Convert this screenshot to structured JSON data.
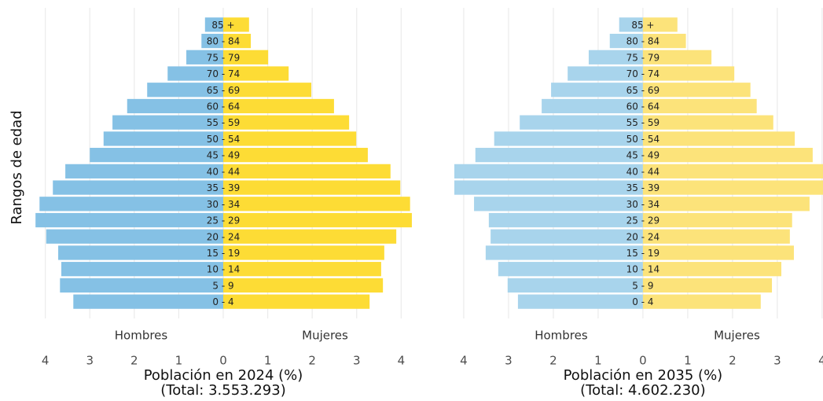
{
  "chart_data": [
    {
      "type": "pyramid",
      "categories": [
        "85 +",
        "80 - 84",
        "75 - 79",
        "70 - 74",
        "65 - 69",
        "60 - 64",
        "55 - 59",
        "50 - 54",
        "45 - 49",
        "40 - 44",
        "35 - 39",
        "30 - 34",
        "25 - 29",
        "20 - 24",
        "15 - 19",
        "10 - 14",
        "5 - 9",
        "0 - 4"
      ],
      "series": [
        {
          "name": "Hombres",
          "color": "#85c1e5",
          "values": [
            -0.41,
            -0.49,
            -0.83,
            -1.25,
            -1.71,
            -2.16,
            -2.49,
            -2.69,
            -3.0,
            -3.55,
            -3.83,
            -4.13,
            -4.22,
            -3.98,
            -3.71,
            -3.64,
            -3.67,
            -3.37
          ]
        },
        {
          "name": "Mujeres",
          "color": "#fddc35",
          "values": [
            0.58,
            0.62,
            1.01,
            1.47,
            1.98,
            2.49,
            2.83,
            2.99,
            3.25,
            3.76,
            3.98,
            4.2,
            4.24,
            3.89,
            3.62,
            3.55,
            3.59,
            3.29
          ]
        }
      ],
      "xlim": [
        -4.4,
        4.4
      ],
      "xticks": [
        {
          "value": -4,
          "label": "4"
        },
        {
          "value": -3,
          "label": "3"
        },
        {
          "value": -2,
          "label": "2"
        },
        {
          "value": -1,
          "label": "1"
        },
        0,
        1,
        2,
        3,
        4
      ],
      "xlabel": "Población en 2024 (%)",
      "xlabel_note": "(Total: 3.553.293)",
      "ylabel": "Rangos de edad",
      "grid": true
    },
    {
      "type": "pyramid",
      "categories": [
        "85 +",
        "80 - 84",
        "75 - 79",
        "70 - 74",
        "65 - 69",
        "60 - 64",
        "55 - 59",
        "50 - 54",
        "45 - 49",
        "40 - 44",
        "35 - 39",
        "30 - 34",
        "25 - 29",
        "20 - 24",
        "15 - 19",
        "10 - 14",
        "5 - 9",
        "0 - 4"
      ],
      "series": [
        {
          "name": "Hombres",
          "color": "#a8d4ec",
          "values": [
            -0.53,
            -0.74,
            -1.21,
            -1.68,
            -2.05,
            -2.26,
            -2.75,
            -3.32,
            -3.74,
            -4.21,
            -4.21,
            -3.77,
            -3.44,
            -3.4,
            -3.51,
            -3.23,
            -3.02,
            -2.79
          ]
        },
        {
          "name": "Mujeres",
          "color": "#fce37a",
          "values": [
            0.77,
            0.96,
            1.53,
            2.04,
            2.4,
            2.54,
            2.91,
            3.39,
            3.79,
            4.02,
            4.02,
            3.72,
            3.33,
            3.28,
            3.37,
            3.09,
            2.88,
            2.63
          ]
        }
      ],
      "xlim": [
        -4.35,
        4.02
      ],
      "xticks": [
        {
          "value": -4,
          "label": "4"
        },
        {
          "value": -3,
          "label": "3"
        },
        {
          "value": -2,
          "label": "2"
        },
        {
          "value": -1,
          "label": "1"
        },
        0,
        1,
        2,
        3,
        4
      ],
      "xlabel": "Población en 2035 (%)",
      "xlabel_note": "(Total: 4.602.230)",
      "grid": true
    }
  ]
}
